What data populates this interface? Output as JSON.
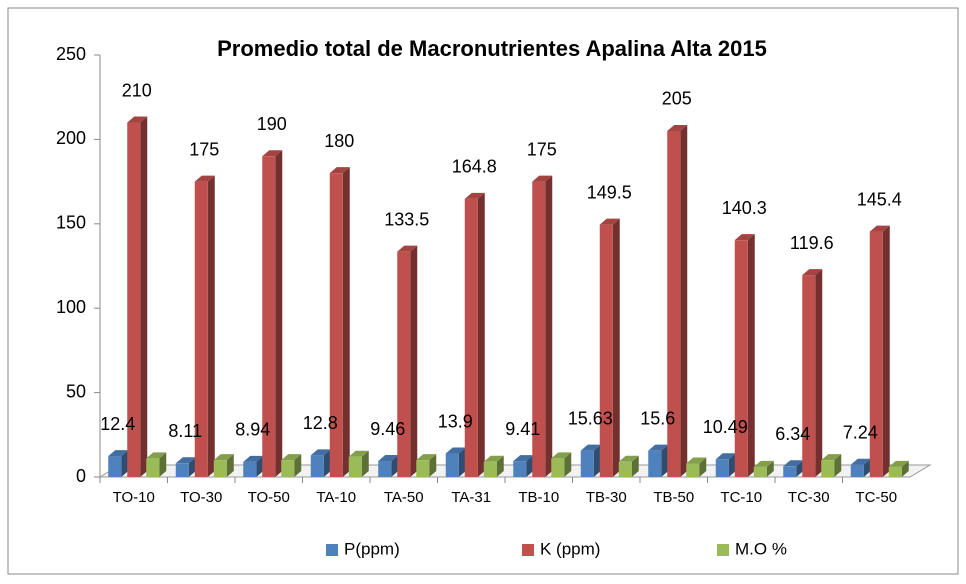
{
  "chart_data": {
    "type": "bar3d",
    "title": "Promedio total de Macronutrientes Apalina Alta 2015",
    "categories": [
      "TO-10",
      "TO-30",
      "TO-50",
      "TA-10",
      "TA-50",
      "TA-31",
      "TB-10",
      "TB-30",
      "TB-50",
      "TC-10",
      "TC-30",
      "TC-50"
    ],
    "series": [
      {
        "name": "P(ppm)",
        "color": "#4f81bd",
        "values": [
          12.4,
          8.11,
          8.94,
          12.8,
          9.46,
          13.9,
          9.41,
          15.63,
          15.6,
          10.49,
          6.34,
          7.24
        ],
        "labeled": true
      },
      {
        "name": "K (ppm)",
        "color": "#c0504d",
        "values": [
          210,
          175,
          190,
          180,
          133.5,
          164.8,
          175,
          149.5,
          205,
          140.3,
          119.6,
          145.4
        ],
        "labeled": true
      },
      {
        "name": "M.O %",
        "color": "#9bbb59",
        "values": [
          11,
          10,
          10,
          12,
          10,
          9,
          11,
          9,
          8,
          6,
          10,
          6
        ],
        "labeled": false
      }
    ],
    "ylim": [
      0,
      250
    ],
    "yticks": [
      0,
      50,
      100,
      150,
      200,
      250
    ],
    "legend": "bottom"
  }
}
